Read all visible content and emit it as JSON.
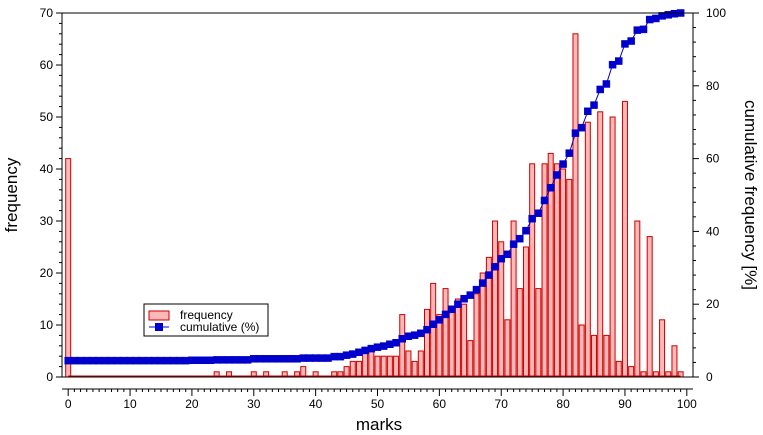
{
  "chart_data": {
    "type": "bar+line",
    "xlabel": "marks",
    "ylabel": "frequency",
    "y2label": "cumulative frequency [%]",
    "xlim": [
      -1,
      101
    ],
    "ylim": [
      0,
      70
    ],
    "y2lim": [
      0,
      100
    ],
    "xticks": [
      0,
      10,
      20,
      30,
      40,
      50,
      60,
      70,
      80,
      90,
      100
    ],
    "yticks": [
      0,
      10,
      20,
      30,
      40,
      50,
      60,
      70
    ],
    "y2ticks": [
      0,
      20,
      40,
      60,
      80,
      100
    ],
    "colors": {
      "bar_fill": "#ffb8b8",
      "bar_stroke": "#cc0000",
      "line": "#0000cc",
      "marker": "#0000cc",
      "axis": "#000000"
    },
    "series": [
      {
        "name": "frequency",
        "type": "bar",
        "axis": "left",
        "x": [
          0,
          24,
          26,
          30,
          32,
          35,
          37,
          38,
          40,
          43,
          44,
          45,
          46,
          47,
          48,
          49,
          50,
          51,
          52,
          53,
          54,
          55,
          56,
          57,
          58,
          59,
          60,
          61,
          62,
          63,
          64,
          65,
          66,
          67,
          68,
          69,
          70,
          71,
          72,
          73,
          74,
          75,
          76,
          77,
          78,
          79,
          80,
          81,
          82,
          83,
          84,
          85,
          86,
          87,
          88,
          89,
          90,
          91,
          92,
          93,
          94,
          95,
          96,
          97,
          98,
          99
        ],
        "values": [
          42,
          1,
          1,
          1,
          1,
          1,
          1,
          2,
          1,
          1,
          1,
          2,
          3,
          3,
          5,
          6,
          4,
          4,
          4,
          4,
          12,
          5,
          3,
          5,
          13,
          18,
          12,
          17,
          13,
          15,
          14,
          7,
          16,
          20,
          23,
          30,
          26,
          11,
          30,
          17,
          25,
          41,
          17,
          41,
          43,
          41,
          40,
          38,
          66,
          10,
          49,
          8,
          51,
          8,
          50,
          3,
          53,
          2,
          30,
          1,
          27,
          1,
          11,
          1,
          6,
          1
        ]
      },
      {
        "name": "cumulative (%)",
        "type": "line",
        "axis": "right",
        "x": [
          0,
          10,
          20,
          24,
          30,
          38,
          43,
          45,
          46,
          47,
          48,
          49,
          50,
          51,
          52,
          53,
          54,
          55,
          56,
          57,
          58,
          59,
          60,
          61,
          62,
          63,
          64,
          65,
          66,
          67,
          68,
          69,
          70,
          71,
          72,
          73,
          74,
          75,
          76,
          77,
          78,
          79,
          80,
          81,
          82,
          83,
          84,
          85,
          86,
          87,
          88,
          89,
          90,
          91,
          92,
          93,
          94,
          95,
          96,
          97,
          98,
          99
        ],
        "values": [
          4.5,
          4.5,
          4.6,
          4.7,
          5.0,
          5.2,
          5.6,
          6.0,
          6.3,
          6.8,
          7.3,
          7.8,
          8.2,
          8.5,
          9.0,
          9.4,
          10.5,
          11.2,
          11.5,
          12.0,
          13.0,
          14.5,
          15.7,
          17.2,
          18.6,
          20.0,
          21.5,
          22.5,
          24.0,
          25.8,
          28.0,
          30.3,
          32.5,
          33.7,
          36.5,
          38.0,
          40.2,
          43.5,
          45.0,
          48.5,
          52.0,
          55.5,
          58.5,
          61.5,
          67.0,
          68.5,
          73.0,
          74.7,
          79.0,
          80.5,
          85.8,
          86.8,
          91.5,
          92.3,
          95.3,
          95.5,
          98.2,
          98.5,
          99.2,
          99.5,
          99.8,
          100.0
        ]
      }
    ],
    "legend": {
      "position": "lower-left",
      "entries": [
        "frequency",
        "cumulative (%)"
      ]
    }
  }
}
